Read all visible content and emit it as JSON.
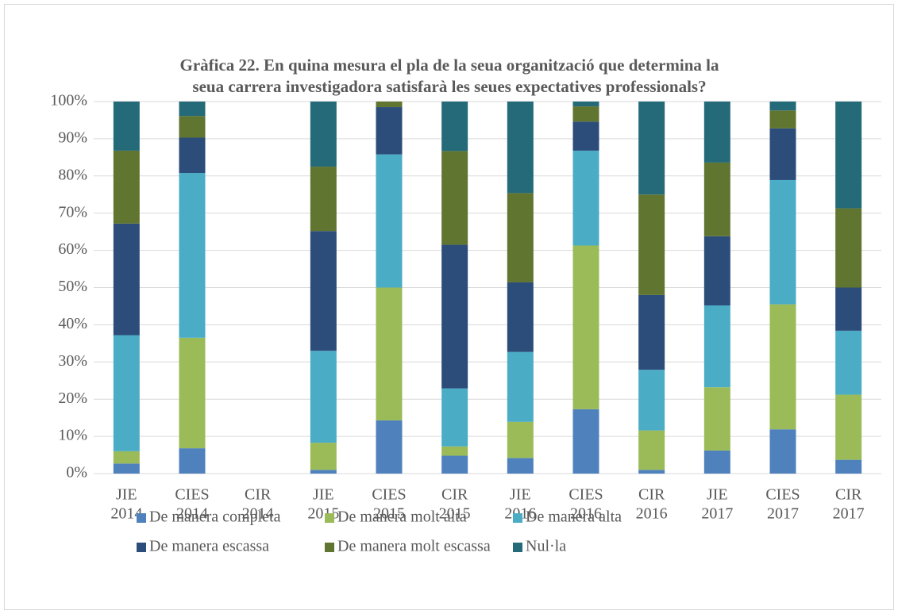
{
  "chart_data": {
    "type": "stacked_bar",
    "title": [
      "Gràfica 22. En quina mesura el pla de la seua organització que determina la",
      "seua carrera investigadora satisfarà les seues expectatives professionals?"
    ],
    "categories": [
      [
        "JIE",
        "2014"
      ],
      [
        "CIES",
        "2014"
      ],
      [
        "CIR",
        "2014"
      ],
      [
        "JIE",
        "2015"
      ],
      [
        "CIES",
        "2015"
      ],
      [
        "CIR",
        "2015"
      ],
      [
        "JIE",
        "2016"
      ],
      [
        "CIES",
        "2016"
      ],
      [
        "CIR",
        "2016"
      ],
      [
        "JIE",
        "2017"
      ],
      [
        "CIES",
        "2017"
      ],
      [
        "CIR",
        "2017"
      ]
    ],
    "series": [
      {
        "name": "De manera completa",
        "color": "#4f81bd",
        "values": [
          2.7,
          6.8,
          0,
          1,
          14.3,
          4.8,
          4.2,
          17.3,
          1,
          6.2,
          11.9,
          3.7
        ]
      },
      {
        "name": "De manera molt alta",
        "color": "#9bbb59",
        "values": [
          3.3,
          29.7,
          0,
          7.3,
          35.7,
          2.5,
          9.7,
          44,
          10.6,
          17,
          33.6,
          17.5
        ]
      },
      {
        "name": "De manera alta",
        "color": "#4bacc6",
        "values": [
          31.2,
          44.3,
          0,
          24.7,
          35.8,
          15.6,
          18.8,
          25.5,
          16.3,
          22,
          33.4,
          17.2
        ]
      },
      {
        "name": "De manera escassa",
        "color": "#2c4d7a",
        "values": [
          30,
          9.5,
          0,
          32.2,
          12.7,
          38.6,
          18.7,
          7.8,
          20.1,
          18.6,
          13.9,
          11.6
        ]
      },
      {
        "name": "De manera molt escassa",
        "color": "#607530",
        "values": [
          19.6,
          5.8,
          0,
          17.3,
          1.5,
          25.2,
          24,
          4.1,
          27,
          19.8,
          4.8,
          21.3
        ]
      },
      {
        "name": "Nul·la",
        "color": "#246a79",
        "values": [
          13.2,
          3.9,
          0,
          17.5,
          0,
          13.3,
          24.6,
          1.3,
          25,
          16.4,
          2.4,
          28.7
        ]
      }
    ],
    "ylim": [
      0,
      100
    ],
    "yticks": [
      {
        "value": 0,
        "label": "0%"
      },
      {
        "value": 10,
        "label": "10%"
      },
      {
        "value": 20,
        "label": "20%"
      },
      {
        "value": 30,
        "label": "30%"
      },
      {
        "value": 40,
        "label": "40%"
      },
      {
        "value": 50,
        "label": "50%"
      },
      {
        "value": 60,
        "label": "60%"
      },
      {
        "value": 70,
        "label": "70%"
      },
      {
        "value": 80,
        "label": "80%"
      },
      {
        "value": 90,
        "label": "90%"
      },
      {
        "value": 100,
        "label": "100%"
      }
    ],
    "grid": true,
    "legend": "bottom"
  }
}
